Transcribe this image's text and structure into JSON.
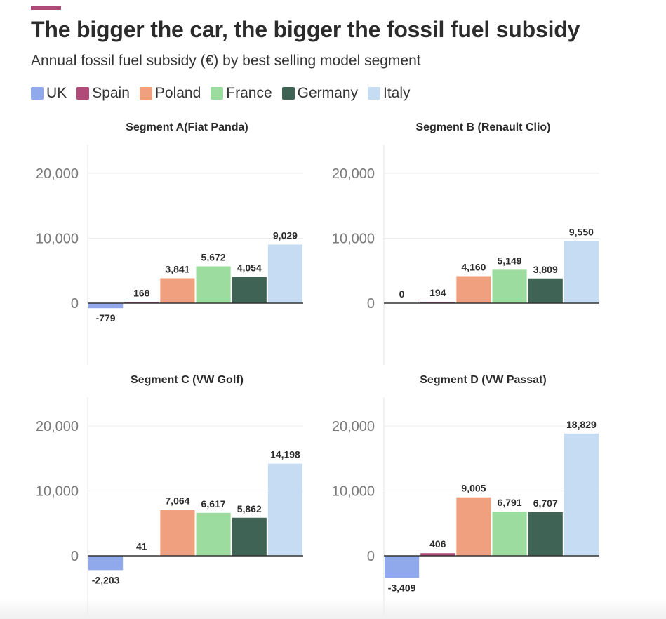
{
  "header": {
    "title": "The bigger the car, the bigger the fossil fuel subsidy",
    "subtitle": "Annual fossil fuel subsidy (€) by best selling model segment"
  },
  "colors": {
    "accent": "#b04a78",
    "UK": "#8fa9ec",
    "Spain": "#b04a78",
    "Poland": "#f0a07e",
    "France": "#9ddc9f",
    "Germany": "#3f6354",
    "Italy": "#c5dcf2"
  },
  "legend": {
    "items": [
      {
        "label": "UK",
        "color": "#8fa9ec"
      },
      {
        "label": "Spain",
        "color": "#b04a78"
      },
      {
        "label": "Poland",
        "color": "#f0a07e"
      },
      {
        "label": "France",
        "color": "#9ddc9f"
      },
      {
        "label": "Germany",
        "color": "#3f6354"
      },
      {
        "label": "Italy",
        "color": "#c5dcf2"
      }
    ]
  },
  "chart_data": [
    {
      "type": "bar",
      "title": "Segment A(Fiat Panda)",
      "categories": [
        "UK",
        "Spain",
        "Poland",
        "France",
        "Germany",
        "Italy"
      ],
      "values": [
        -779,
        168,
        3841,
        5672,
        4054,
        9029
      ],
      "labels": [
        "-779",
        "168",
        "3,841",
        "5,672",
        "4,054",
        "9,029"
      ],
      "yticks": [
        "0",
        "10,000",
        "20,000"
      ],
      "ylim": [
        -9000,
        24000
      ],
      "grid": true
    },
    {
      "type": "bar",
      "title": "Segment B (Renault Clio)",
      "categories": [
        "UK",
        "Spain",
        "Poland",
        "France",
        "Germany",
        "Italy"
      ],
      "values": [
        0,
        194,
        4160,
        5149,
        3809,
        9550
      ],
      "labels": [
        "0",
        "194",
        "4,160",
        "5,149",
        "3,809",
        "9,550"
      ],
      "yticks": [
        "0",
        "10,000",
        "20,000"
      ],
      "ylim": [
        -9000,
        24000
      ],
      "grid": true
    },
    {
      "type": "bar",
      "title": "Segment C (VW Golf)",
      "categories": [
        "UK",
        "Spain",
        "Poland",
        "France",
        "Germany",
        "Italy"
      ],
      "values": [
        -2203,
        41,
        7064,
        6617,
        5862,
        14198
      ],
      "labels": [
        "-2,203",
        "41",
        "7,064",
        "6,617",
        "5,862",
        "14,198"
      ],
      "yticks": [
        "0",
        "10,000",
        "20,000"
      ],
      "ylim": [
        -9000,
        24000
      ],
      "grid": true
    },
    {
      "type": "bar",
      "title": "Segment D (VW Passat)",
      "categories": [
        "UK",
        "Spain",
        "Poland",
        "France",
        "Germany",
        "Italy"
      ],
      "values": [
        -3409,
        406,
        9005,
        6791,
        6707,
        18829
      ],
      "labels": [
        "-3,409",
        "406",
        "9,005",
        "6,791",
        "6,707",
        "18,829"
      ],
      "yticks": [
        "0",
        "10,000",
        "20,000"
      ],
      "ylim": [
        -9000,
        24000
      ],
      "grid": true
    }
  ]
}
